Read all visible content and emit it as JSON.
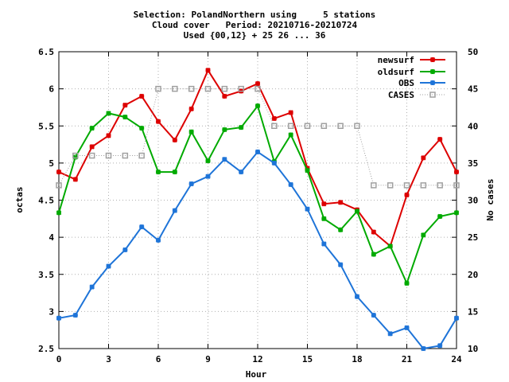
{
  "chart_data": {
    "type": "line",
    "title_lines": [
      "Selection: PolandNorthern using     5 stations",
      "Cloud cover   Period: 20210716-20210724",
      "Used {00,12} + 25 26 ... 36"
    ],
    "xlabel": "Hour",
    "ylabel": "octas",
    "y2label": "No cases",
    "xlim": [
      0,
      24
    ],
    "ylim": [
      2.5,
      6.5
    ],
    "y2lim": [
      10,
      50
    ],
    "x_ticks": [
      0,
      3,
      6,
      9,
      12,
      15,
      18,
      21,
      24
    ],
    "y_ticks": [
      "2.5",
      "3",
      "3.5",
      "4",
      "4.5",
      "5",
      "5.5",
      "6",
      "6.5"
    ],
    "y2_ticks": [
      "10",
      "15",
      "20",
      "25",
      "30",
      "35",
      "40",
      "45",
      "50"
    ],
    "grid": true,
    "legend_position": "top-right",
    "x": [
      0,
      1,
      2,
      3,
      4,
      5,
      6,
      7,
      8,
      9,
      10,
      11,
      12,
      13,
      14,
      15,
      16,
      17,
      18,
      19,
      20,
      21,
      22,
      23,
      24
    ],
    "series": [
      {
        "name": "newsurf",
        "color": "#dd0000",
        "marker": "star",
        "axis": "left",
        "values": [
          4.88,
          4.78,
          5.22,
          5.37,
          5.78,
          5.9,
          5.56,
          5.31,
          5.73,
          6.25,
          5.9,
          5.97,
          6.07,
          5.6,
          5.68,
          4.93,
          4.45,
          4.47,
          4.37,
          4.07,
          3.88,
          4.57,
          5.07,
          5.32,
          4.88
        ]
      },
      {
        "name": "oldsurf",
        "color": "#00aa00",
        "marker": "star",
        "axis": "left",
        "values": [
          4.33,
          5.08,
          5.47,
          5.67,
          5.62,
          5.47,
          4.88,
          4.88,
          5.42,
          5.03,
          5.45,
          5.48,
          5.77,
          5.02,
          5.38,
          4.9,
          4.25,
          4.1,
          4.35,
          3.77,
          3.88,
          3.38,
          4.03,
          4.28,
          4.33
        ]
      },
      {
        "name": "OBS",
        "color": "#1e74d8",
        "marker": "star",
        "axis": "left",
        "values": [
          2.91,
          2.95,
          3.33,
          3.61,
          3.83,
          4.14,
          3.96,
          4.36,
          4.72,
          4.82,
          5.05,
          4.88,
          5.15,
          5.0,
          4.71,
          4.38,
          3.91,
          3.63,
          3.2,
          2.95,
          2.7,
          2.78,
          2.5,
          2.54,
          2.91
        ]
      },
      {
        "name": "CASES",
        "color": "#a0a0a0",
        "marker": "open-square",
        "line": "dotted",
        "axis": "right",
        "values": [
          32,
          36,
          36,
          36,
          36,
          36,
          45,
          45,
          45,
          45,
          45,
          45,
          45,
          40,
          40,
          40,
          40,
          40,
          40,
          32,
          32,
          32,
          32,
          32,
          32
        ]
      }
    ]
  }
}
